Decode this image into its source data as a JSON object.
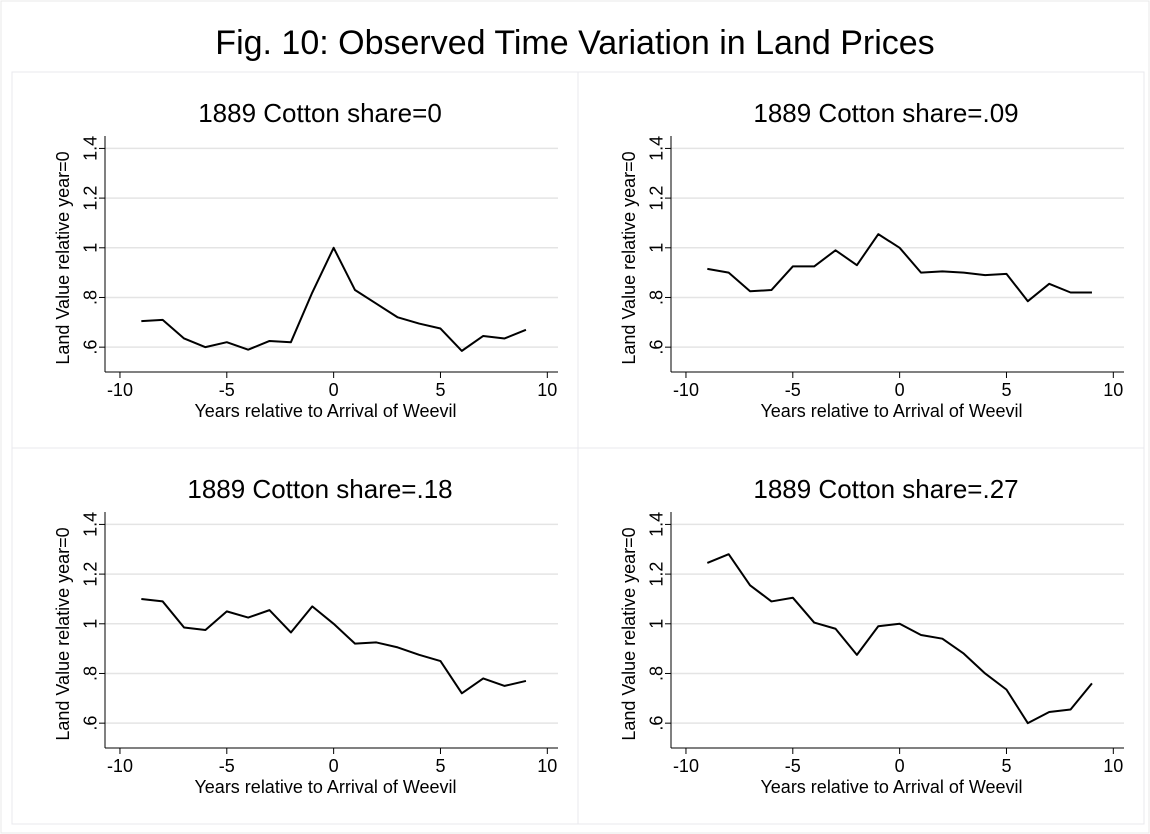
{
  "title": "Fig. 10: Observed Time Variation in Land Prices",
  "chart_data": [
    {
      "type": "line",
      "title": "1889 Cotton share=0",
      "xlabel": "Years relative to Arrival of Weevil",
      "ylabel": "Land Value relative year=0",
      "x": [
        -9,
        -8,
        -7,
        -6,
        -5,
        -4,
        -3,
        -2,
        -1,
        0,
        1,
        2,
        3,
        4,
        5,
        6,
        7,
        8,
        9
      ],
      "values": [
        0.705,
        0.71,
        0.635,
        0.6,
        0.62,
        0.59,
        0.625,
        0.62,
        0.82,
        1.0,
        0.83,
        0.775,
        0.72,
        0.695,
        0.675,
        0.585,
        0.645,
        0.635,
        0.67
      ],
      "color": "#000000",
      "xlim": [
        -10.7,
        10.5
      ],
      "ylim": [
        0.5,
        1.45
      ],
      "xticks": [
        -10,
        -5,
        0,
        5,
        10
      ],
      "yticks": [
        {
          "value": 0.6,
          "label": ".6"
        },
        {
          "value": 0.8,
          "label": ".8"
        },
        1,
        1.2,
        1.4
      ],
      "grid": true
    },
    {
      "type": "line",
      "title": "1889 Cotton share=.09",
      "xlabel": "Years relative to Arrival of Weevil",
      "ylabel": "Land Value relative year=0",
      "x": [
        -9,
        -8,
        -7,
        -6,
        -5,
        -4,
        -3,
        -2,
        -1,
        0,
        1,
        2,
        3,
        4,
        5,
        6,
        7,
        8,
        9
      ],
      "values": [
        0.915,
        0.9,
        0.825,
        0.83,
        0.925,
        0.925,
        0.99,
        0.93,
        1.055,
        1.0,
        0.9,
        0.905,
        0.9,
        0.89,
        0.895,
        0.785,
        0.855,
        0.82,
        0.82
      ],
      "color": "#000000",
      "xlim": [
        -10.7,
        10.5
      ],
      "ylim": [
        0.5,
        1.45
      ],
      "xticks": [
        -10,
        -5,
        0,
        5,
        10
      ],
      "yticks": [
        {
          "value": 0.6,
          "label": ".6"
        },
        {
          "value": 0.8,
          "label": ".8"
        },
        1,
        1.2,
        1.4
      ],
      "grid": true
    },
    {
      "type": "line",
      "title": "1889 Cotton share=.18",
      "xlabel": "Years relative to Arrival of Weevil",
      "ylabel": "Land Value relative year=0",
      "x": [
        -9,
        -8,
        -7,
        -6,
        -5,
        -4,
        -3,
        -2,
        -1,
        0,
        1,
        2,
        3,
        4,
        5,
        6,
        7,
        8,
        9
      ],
      "values": [
        1.1,
        1.09,
        0.985,
        0.975,
        1.05,
        1.025,
        1.055,
        0.965,
        1.07,
        1.0,
        0.92,
        0.925,
        0.905,
        0.875,
        0.85,
        0.72,
        0.78,
        0.75,
        0.77
      ],
      "color": "#000000",
      "xlim": [
        -10.7,
        10.5
      ],
      "ylim": [
        0.5,
        1.45
      ],
      "xticks": [
        -10,
        -5,
        0,
        5,
        10
      ],
      "yticks": [
        {
          "value": 0.6,
          "label": ".6"
        },
        {
          "value": 0.8,
          "label": ".8"
        },
        1,
        1.2,
        1.4
      ],
      "grid": true
    },
    {
      "type": "line",
      "title": "1889 Cotton share=.27",
      "xlabel": "Years relative to Arrival of Weevil",
      "ylabel": "Land Value relative year=0",
      "x": [
        -9,
        -8,
        -7,
        -6,
        -5,
        -4,
        -3,
        -2,
        -1,
        0,
        1,
        2,
        3,
        4,
        5,
        6,
        7,
        8,
        9
      ],
      "values": [
        1.245,
        1.28,
        1.155,
        1.09,
        1.105,
        1.005,
        0.98,
        0.875,
        0.99,
        1.0,
        0.955,
        0.94,
        0.88,
        0.8,
        0.735,
        0.6,
        0.645,
        0.655,
        0.76
      ],
      "color": "#000000",
      "xlim": [
        -10.7,
        10.5
      ],
      "ylim": [
        0.5,
        1.45
      ],
      "xticks": [
        -10,
        -5,
        0,
        5,
        10
      ],
      "yticks": [
        {
          "value": 0.6,
          "label": ".6"
        },
        {
          "value": 0.8,
          "label": ".8"
        },
        1,
        1.2,
        1.4
      ],
      "grid": true
    }
  ]
}
